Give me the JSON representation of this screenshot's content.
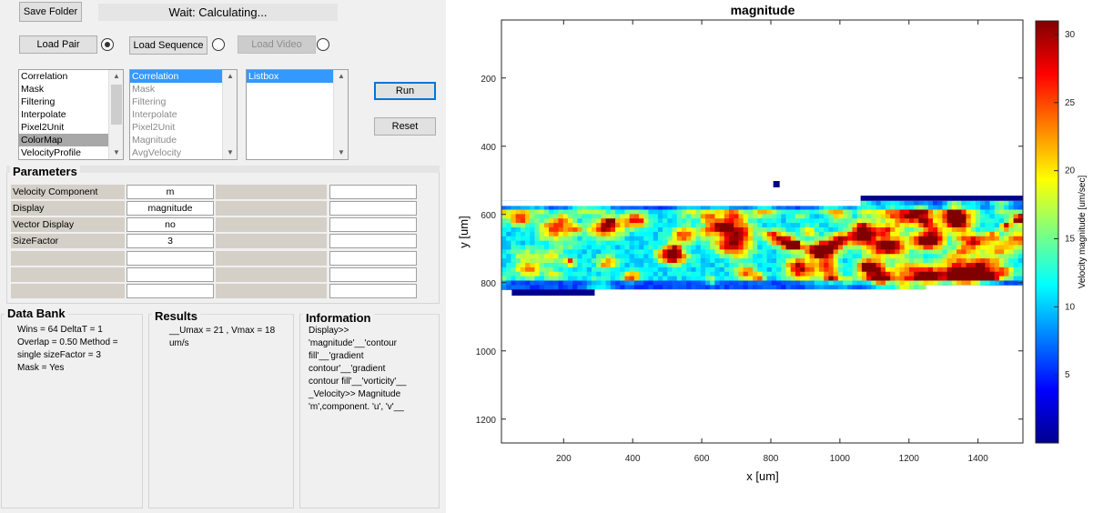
{
  "toolbar": {
    "save_folder_label": "Save Folder",
    "status_text": "Wait: Calculating...",
    "load_pair_label": "Load Pair",
    "load_sequence_label": "Load Sequence",
    "load_video_label": "Load Video",
    "run_label": "Run",
    "reset_label": "Reset"
  },
  "lists": {
    "list1": [
      "Correlation",
      "Mask",
      "Filtering",
      "Interpolate",
      "Pixel2Unit",
      "ColorMap",
      "VelocityProfile"
    ],
    "list1_selected": "ColorMap",
    "list2": [
      "Correlation",
      "Mask",
      "Filtering",
      "Interpolate",
      "Pixel2Unit",
      "Magnitude",
      "AvgVelocity"
    ],
    "list2_selected": "Correlation",
    "list3": [
      "Listbox"
    ],
    "list3_selected": "Listbox"
  },
  "parameters": {
    "title": "Parameters",
    "rows": [
      {
        "label": "Velocity Component",
        "value": "m"
      },
      {
        "label": "Display",
        "value": "magnitude"
      },
      {
        "label": "Vector Display",
        "value": "no"
      },
      {
        "label": "SizeFactor",
        "value": "3"
      }
    ]
  },
  "databank": {
    "title": "Data Bank",
    "text": "Wins = 64  DeltaT = 1\nOverlap = 0.50  Method =\nsingle  sizeFactor = 3\nMask = Yes"
  },
  "results": {
    "title": "Results",
    "text": "__Umax = 21 , Vmax = 18\num/s"
  },
  "information": {
    "title": "Information",
    "text": " Display>>\n'magnitude'__'contour\nfill'__'gradient\ncontour'__'gradient\ncontour fill'__'vorticity'__\n_Velocity>> Magnitude\n'm',component. 'u', 'v'__"
  },
  "chart_data": {
    "type": "heatmap",
    "title": "magnitude",
    "xlabel": "x [um]",
    "ylabel": "y [um]",
    "colorbar_label": "Velocity magnitude [um/sec]",
    "colormap": "jet",
    "xlim": [
      20,
      1530
    ],
    "ylim": [
      1270,
      30
    ],
    "y_reversed": true,
    "x_ticks": [
      200,
      400,
      600,
      800,
      1000,
      1200,
      1400
    ],
    "y_ticks": [
      200,
      400,
      600,
      800,
      1000,
      1200
    ],
    "colorbar_range": [
      0,
      31
    ],
    "colorbar_ticks": [
      5,
      10,
      15,
      20,
      25,
      30
    ],
    "band": {
      "x": [
        20,
        1530
      ],
      "y": [
        560,
        820
      ]
    },
    "isolated_point": {
      "x": 815,
      "y": 510,
      "value": 0.5
    }
  },
  "colors": {
    "panel_bg": "#f0f0f0",
    "listbox_selection_gray": "#a8a8a8",
    "listbox_selection_blue": "#3399ff",
    "param_label_bg": "#d4d0c8"
  }
}
